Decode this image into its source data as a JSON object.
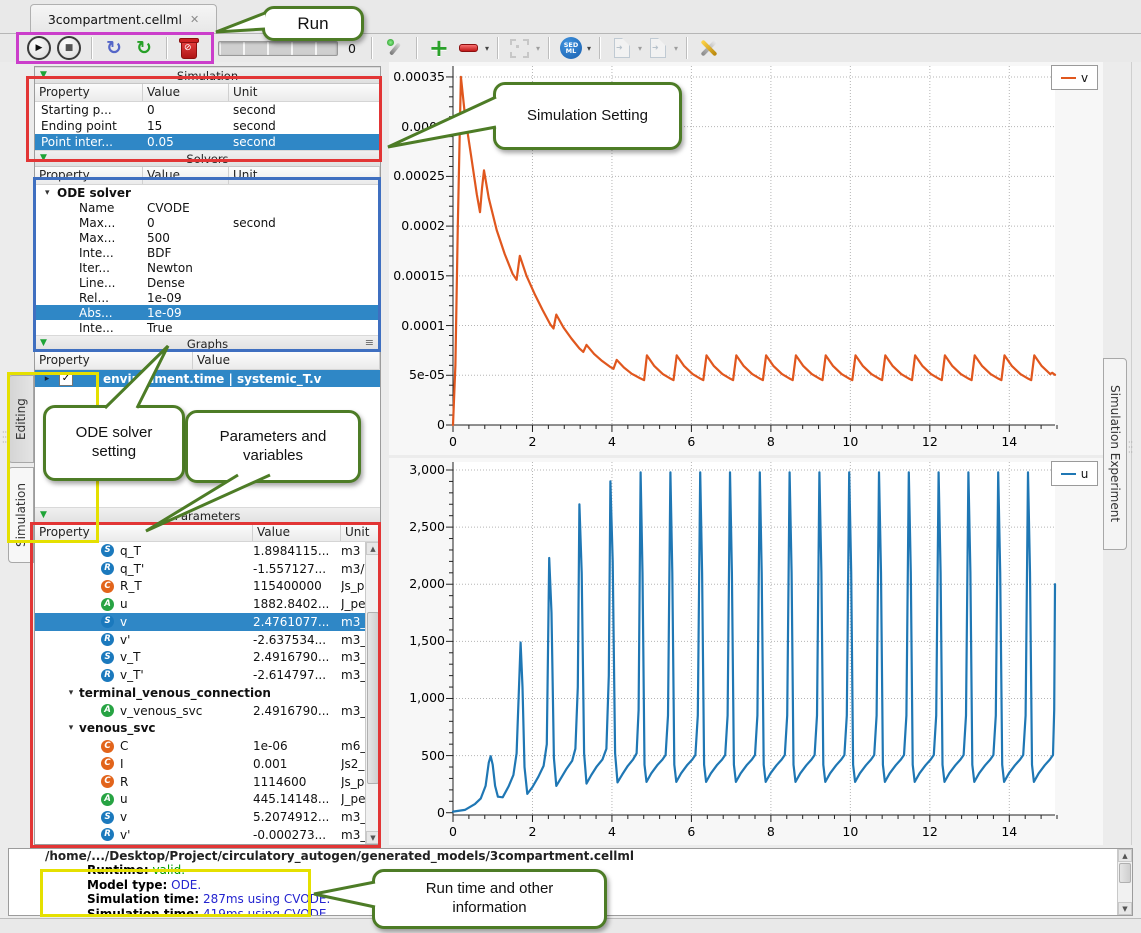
{
  "tab": {
    "title": "3compartment.cellml",
    "close_glyph": "✕"
  },
  "icons": {
    "section_arrow": "▼",
    "hamburger": "≡",
    "expand": "▾",
    "collapse": "▸",
    "check": "✓",
    "play": "▶",
    "stop": "■",
    "refresh": "↻",
    "dropdown": "▾",
    "up": "▲",
    "down": "▼"
  },
  "toolbar": {
    "delay_value": "0",
    "sedml_line1": "SED",
    "sedml_line2": "ML"
  },
  "left": {
    "tabs": [
      {
        "label": "Editing"
      },
      {
        "label": "Simulation"
      }
    ],
    "sections": {
      "simulation": {
        "title": "Simulation",
        "headers": [
          "Property",
          "Value",
          "Unit"
        ],
        "rows": [
          {
            "property": "Starting p...",
            "value": "0",
            "unit": "second",
            "selected": false
          },
          {
            "property": "Ending point",
            "value": "15",
            "unit": "second",
            "selected": false
          },
          {
            "property": "Point inter...",
            "value": "0.05",
            "unit": "second",
            "selected": true
          }
        ]
      },
      "solvers": {
        "title": "Solvers",
        "headers": [
          "Property",
          "Value",
          "Unit"
        ],
        "group_label": "ODE solver",
        "rows": [
          {
            "property": "Name",
            "value": "CVODE",
            "unit": "",
            "selected": false
          },
          {
            "property": "Max...",
            "value": "0",
            "unit": "second",
            "selected": false
          },
          {
            "property": "Max...",
            "value": "500",
            "unit": "",
            "selected": false
          },
          {
            "property": "Inte...",
            "value": "BDF",
            "unit": "",
            "selected": false
          },
          {
            "property": "Iter...",
            "value": "Newton",
            "unit": "",
            "selected": false
          },
          {
            "property": "Line...",
            "value": "Dense",
            "unit": "",
            "selected": false
          },
          {
            "property": "Rel...",
            "value": "1e-09",
            "unit": "",
            "selected": false
          },
          {
            "property": "Abs...",
            "value": "1e-09",
            "unit": "",
            "selected": true
          },
          {
            "property": "Inte...",
            "value": "True",
            "unit": "",
            "selected": false
          }
        ]
      },
      "graphs": {
        "title": "Graphs",
        "headers": [
          "Property",
          "Value"
        ],
        "rows": [
          {
            "label": "environment.time | systemic_T.v",
            "checked": true,
            "selected": true
          }
        ]
      },
      "parameters": {
        "title": "Parameters",
        "headers": [
          "Property",
          "Value",
          "Unit"
        ],
        "rows": [
          {
            "type": "param",
            "icon": "S",
            "name": "q_T",
            "value": "1.8984115...",
            "unit": "m3",
            "selected": false
          },
          {
            "type": "param",
            "icon": "R",
            "name": "q_T'",
            "value": "-1.557127...",
            "unit": "m3/se...",
            "selected": false
          },
          {
            "type": "param",
            "icon": "C",
            "name": "R_T",
            "value": "115400000",
            "unit": "Js_per...",
            "selected": false
          },
          {
            "type": "param",
            "icon": "A",
            "name": "u",
            "value": "1882.8402...",
            "unit": "J_per_...",
            "selected": false
          },
          {
            "type": "param",
            "icon": "S",
            "name": "v",
            "value": "2.4761077...",
            "unit": "m3_p...",
            "selected": true
          },
          {
            "type": "param",
            "icon": "R",
            "name": "v'",
            "value": "-2.637534...",
            "unit": "m3_p...",
            "selected": false
          },
          {
            "type": "param",
            "icon": "S",
            "name": "v_T",
            "value": "2.4916790...",
            "unit": "m3_p...",
            "selected": false
          },
          {
            "type": "param",
            "icon": "R",
            "name": "v_T'",
            "value": "-2.614797...",
            "unit": "m3_p...",
            "selected": false
          },
          {
            "type": "group",
            "name": "terminal_venous_connection"
          },
          {
            "type": "param",
            "icon": "A",
            "name": "v_venous_svc",
            "value": "2.4916790...",
            "unit": "m3_p...",
            "selected": false
          },
          {
            "type": "group",
            "name": "venous_svc"
          },
          {
            "type": "param",
            "icon": "C",
            "name": "C",
            "value": "1e-06",
            "unit": "m6_p...",
            "selected": false
          },
          {
            "type": "param",
            "icon": "C",
            "name": "I",
            "value": "0.001",
            "unit": "Js2_p...",
            "selected": false
          },
          {
            "type": "param",
            "icon": "C",
            "name": "R",
            "value": "1114600",
            "unit": "Js_per...",
            "selected": false
          },
          {
            "type": "param",
            "icon": "A",
            "name": "u",
            "value": "445.14148...",
            "unit": "J_per_...",
            "selected": false
          },
          {
            "type": "param",
            "icon": "S",
            "name": "v",
            "value": "5.2074912...",
            "unit": "m3_p...",
            "selected": false
          },
          {
            "type": "param",
            "icon": "R",
            "name": "v'",
            "value": "-0.000273...",
            "unit": "m3_p...",
            "selected": false
          }
        ]
      }
    }
  },
  "right_tab": "Simulation Experiment",
  "annotations": {
    "run": {
      "line1": "Run"
    },
    "simulation_setting": {
      "line1": "Simulation Setting"
    },
    "ode_solver_setting": {
      "line1": "ODE solver",
      "line2": "setting"
    },
    "parameters_variables": {
      "line1": "Parameters and",
      "line2": "variables"
    },
    "runtime_info": {
      "line1": "Run time and other",
      "line2": "information"
    }
  },
  "output": {
    "path_line": "/home/.../Desktop/Project/circulatory_autogen/generated_models/3compartment.cellml",
    "lines": [
      {
        "label": "Runtime:",
        "value": "valid.",
        "color": "green"
      },
      {
        "label": "Model type:",
        "value": "ODE.",
        "color": "blue"
      },
      {
        "label": "Simulation time:",
        "value": "287ms using CVODE.",
        "color": "blue"
      },
      {
        "label": "Simulation time:",
        "value": "419ms using CVODE.",
        "color": "blue"
      }
    ]
  },
  "colors": {
    "selection": "#2f87c6",
    "callout_border": "#4d7c26",
    "annotation_purple": "#cb3ecb",
    "annotation_red": "#e23535",
    "annotation_blue": "#3f6fc0",
    "annotation_yellow": "#e5e000",
    "curve_v": "#e0571e",
    "curve_u": "#1f77b4",
    "param_icons": {
      "S": "#1b79bd",
      "R": "#1b79bd",
      "C": "#e2641b",
      "A": "#27a343"
    }
  },
  "chart_data": [
    {
      "type": "line",
      "legend": "v",
      "color": "#e0571e",
      "title": "",
      "xlabel": "",
      "ylabel": "",
      "grid": true,
      "legend_position": "top-right",
      "xlim": [
        0,
        15.15
      ],
      "ylim": [
        0,
        0.000361
      ],
      "xticks": [
        0,
        2,
        4,
        6,
        8,
        10,
        12,
        14
      ],
      "xtick_labels": [
        "0",
        "2",
        "4",
        "6",
        "8",
        "10",
        "12",
        "14"
      ],
      "x_minor": 0.4,
      "yticks": [
        0,
        5e-05,
        0.0001,
        0.00015,
        0.0002,
        0.00025,
        0.0003,
        0.00035
      ],
      "ytick_labels": [
        "0",
        "5e-05",
        "0.0001",
        "0.00015",
        "0.0002",
        "0.00025",
        "0.0003",
        "0.00035"
      ],
      "y_minor": 1e-05,
      "points": [
        [
          0,
          0
        ],
        [
          0.06,
          6e-05
        ],
        [
          0.12,
          0.0002
        ],
        [
          0.2,
          0.00035
        ],
        [
          0.3,
          0.000312
        ],
        [
          0.45,
          0.000272
        ],
        [
          0.6,
          0.000232
        ],
        [
          0.68,
          0.000214
        ],
        [
          0.73,
          0.000238
        ],
        [
          0.78,
          0.000256
        ],
        [
          0.9,
          0.000228
        ],
        [
          1.1,
          0.000196
        ],
        [
          1.3,
          0.000172
        ],
        [
          1.5,
          0.000152
        ],
        [
          1.6,
          0.000146
        ],
        [
          1.68,
          0.00017
        ],
        [
          1.85,
          0.00015
        ],
        [
          2.05,
          0.000132
        ],
        [
          2.25,
          0.000116
        ],
        [
          2.45,
          0.000101
        ],
        [
          2.53,
          9.7e-05
        ],
        [
          2.6,
          0.000111
        ],
        [
          2.78,
          9.8e-05
        ],
        [
          2.98,
          8.7e-05
        ],
        [
          3.18,
          7.7e-05
        ],
        [
          3.28,
          7.35e-05
        ],
        [
          3.36,
          8.05e-05
        ],
        [
          3.55,
          7.15e-05
        ],
        [
          3.75,
          6.45e-05
        ],
        [
          3.95,
          5.85e-05
        ],
        [
          4.04,
          5.65e-05
        ],
        [
          4.12,
          6.55e-05
        ],
        [
          4.3,
          5.78e-05
        ],
        [
          4.5,
          5.15e-05
        ],
        [
          4.7,
          4.72e-05
        ],
        [
          4.81,
          4.52e-05
        ],
        [
          15.08,
          5.25e-05
        ],
        [
          15.15,
          5.05e-05
        ]
      ],
      "cycles": {
        "peak_times": [
          4.88,
          5.63,
          6.38,
          7.13,
          7.88,
          8.63,
          9.38,
          10.13,
          10.88,
          11.63,
          12.38,
          13.13,
          13.88,
          14.63
        ],
        "profile": [
          [
            0,
            7e-05
          ],
          [
            0.18,
            5.95e-05
          ],
          [
            0.4,
            5.12e-05
          ],
          [
            0.6,
            4.65e-05
          ],
          [
            0.67,
            4.52e-05
          ]
        ]
      }
    },
    {
      "type": "line",
      "legend": "u",
      "color": "#1f77b4",
      "title": "",
      "xlabel": "",
      "ylabel": "",
      "grid": true,
      "legend_position": "top-right",
      "xlim": [
        0,
        15.15
      ],
      "ylim": [
        -20,
        3070
      ],
      "xticks": [
        0,
        2,
        4,
        6,
        8,
        10,
        12,
        14
      ],
      "xtick_labels": [
        "0",
        "2",
        "4",
        "6",
        "8",
        "10",
        "12",
        "14"
      ],
      "x_minor": 0.4,
      "yticks": [
        0,
        500,
        1000,
        1500,
        2000,
        2500,
        3000
      ],
      "ytick_labels": [
        "0",
        "500",
        "1,000",
        "1,500",
        "2,000",
        "2,500",
        "3,000"
      ],
      "y_minor": 100,
      "points": [
        [
          0,
          10
        ],
        [
          0.3,
          25
        ],
        [
          0.55,
          75
        ],
        [
          0.7,
          125
        ],
        [
          0.82,
          235
        ],
        [
          0.9,
          440
        ],
        [
          0.95,
          495
        ],
        [
          1.0,
          420
        ],
        [
          1.06,
          235
        ],
        [
          1.13,
          140
        ],
        [
          1.25,
          135
        ],
        [
          1.4,
          230
        ],
        [
          1.52,
          330
        ],
        [
          1.6,
          520
        ],
        [
          1.66,
          1100
        ],
        [
          1.7,
          1490
        ],
        [
          1.75,
          1100
        ],
        [
          1.8,
          400
        ],
        [
          1.87,
          165
        ],
        [
          2.0,
          225
        ],
        [
          2.15,
          315
        ],
        [
          2.28,
          410
        ],
        [
          2.36,
          600
        ],
        [
          2.42,
          2230
        ],
        [
          2.48,
          1750
        ],
        [
          2.54,
          480
        ],
        [
          2.6,
          235
        ],
        [
          2.72,
          305
        ],
        [
          2.86,
          385
        ],
        [
          3.0,
          455
        ],
        [
          3.08,
          560
        ],
        [
          3.14,
          1100
        ],
        [
          3.18,
          2700
        ],
        [
          3.24,
          2100
        ],
        [
          3.3,
          520
        ],
        [
          3.36,
          255
        ],
        [
          3.48,
          330
        ],
        [
          3.62,
          405
        ],
        [
          3.76,
          465
        ],
        [
          3.86,
          560
        ],
        [
          3.92,
          1200
        ],
        [
          3.96,
          2900
        ],
        [
          4.02,
          2200
        ],
        [
          4.08,
          520
        ],
        [
          4.14,
          265
        ],
        [
          4.26,
          335
        ],
        [
          4.4,
          410
        ],
        [
          4.53,
          465
        ],
        [
          4.62,
          520
        ],
        [
          4.67,
          900
        ],
        [
          15.13,
          900
        ],
        [
          15.15,
          2000
        ]
      ],
      "cycles": {
        "peak_times": [
          4.72,
          5.47,
          6.22,
          6.97,
          7.72,
          8.47,
          9.22,
          9.97,
          10.72,
          11.47,
          12.22,
          12.97,
          13.72,
          14.47
        ],
        "profile": [
          [
            0,
            2980
          ],
          [
            0.05,
            2100
          ],
          [
            0.1,
            420
          ],
          [
            0.15,
            270
          ],
          [
            0.27,
            345
          ],
          [
            0.42,
            415
          ],
          [
            0.55,
            465
          ],
          [
            0.63,
            505
          ],
          [
            0.69,
            850
          ]
        ]
      }
    }
  ]
}
